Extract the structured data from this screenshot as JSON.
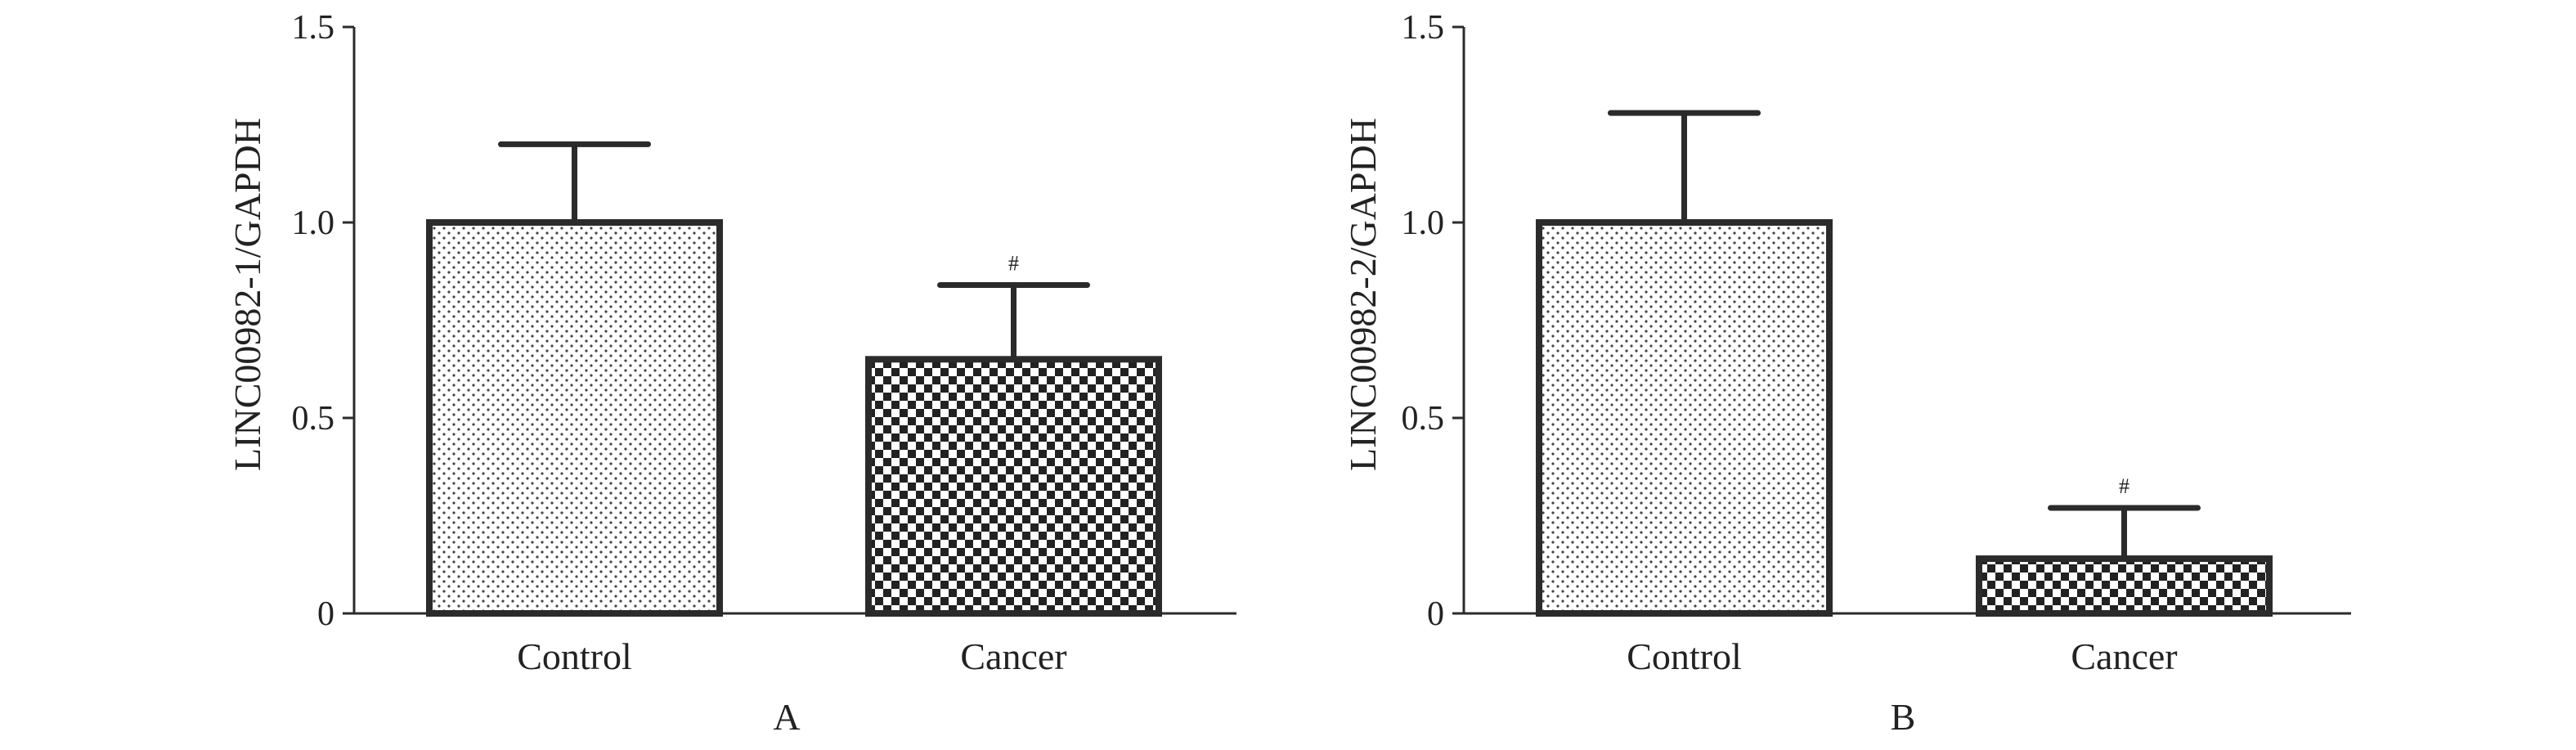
{
  "chart_data": [
    {
      "type": "bar",
      "panel_label": "A",
      "ylabel": "LINC00982-1/GAPDH",
      "ylim": [
        0,
        1.5
      ],
      "yticks": [
        "0",
        "0.5",
        "1.0",
        "1.5"
      ],
      "categories": [
        "Control",
        "Cancer"
      ],
      "values": [
        1.0,
        0.65
      ],
      "error_upper": [
        0.2,
        0.19
      ],
      "significance": [
        "",
        "#"
      ],
      "patterns": [
        "dots",
        "checker"
      ]
    },
    {
      "type": "bar",
      "panel_label": "B",
      "ylabel": "LINC00982-2/GAPDH",
      "ylim": [
        0,
        1.5
      ],
      "yticks": [
        "0",
        "0.5",
        "1.0",
        "1.5"
      ],
      "categories": [
        "Control",
        "Cancer"
      ],
      "values": [
        1.0,
        0.14
      ],
      "error_upper": [
        0.28,
        0.13
      ],
      "significance": [
        "",
        "#"
      ],
      "patterns": [
        "dots",
        "checker"
      ]
    }
  ]
}
